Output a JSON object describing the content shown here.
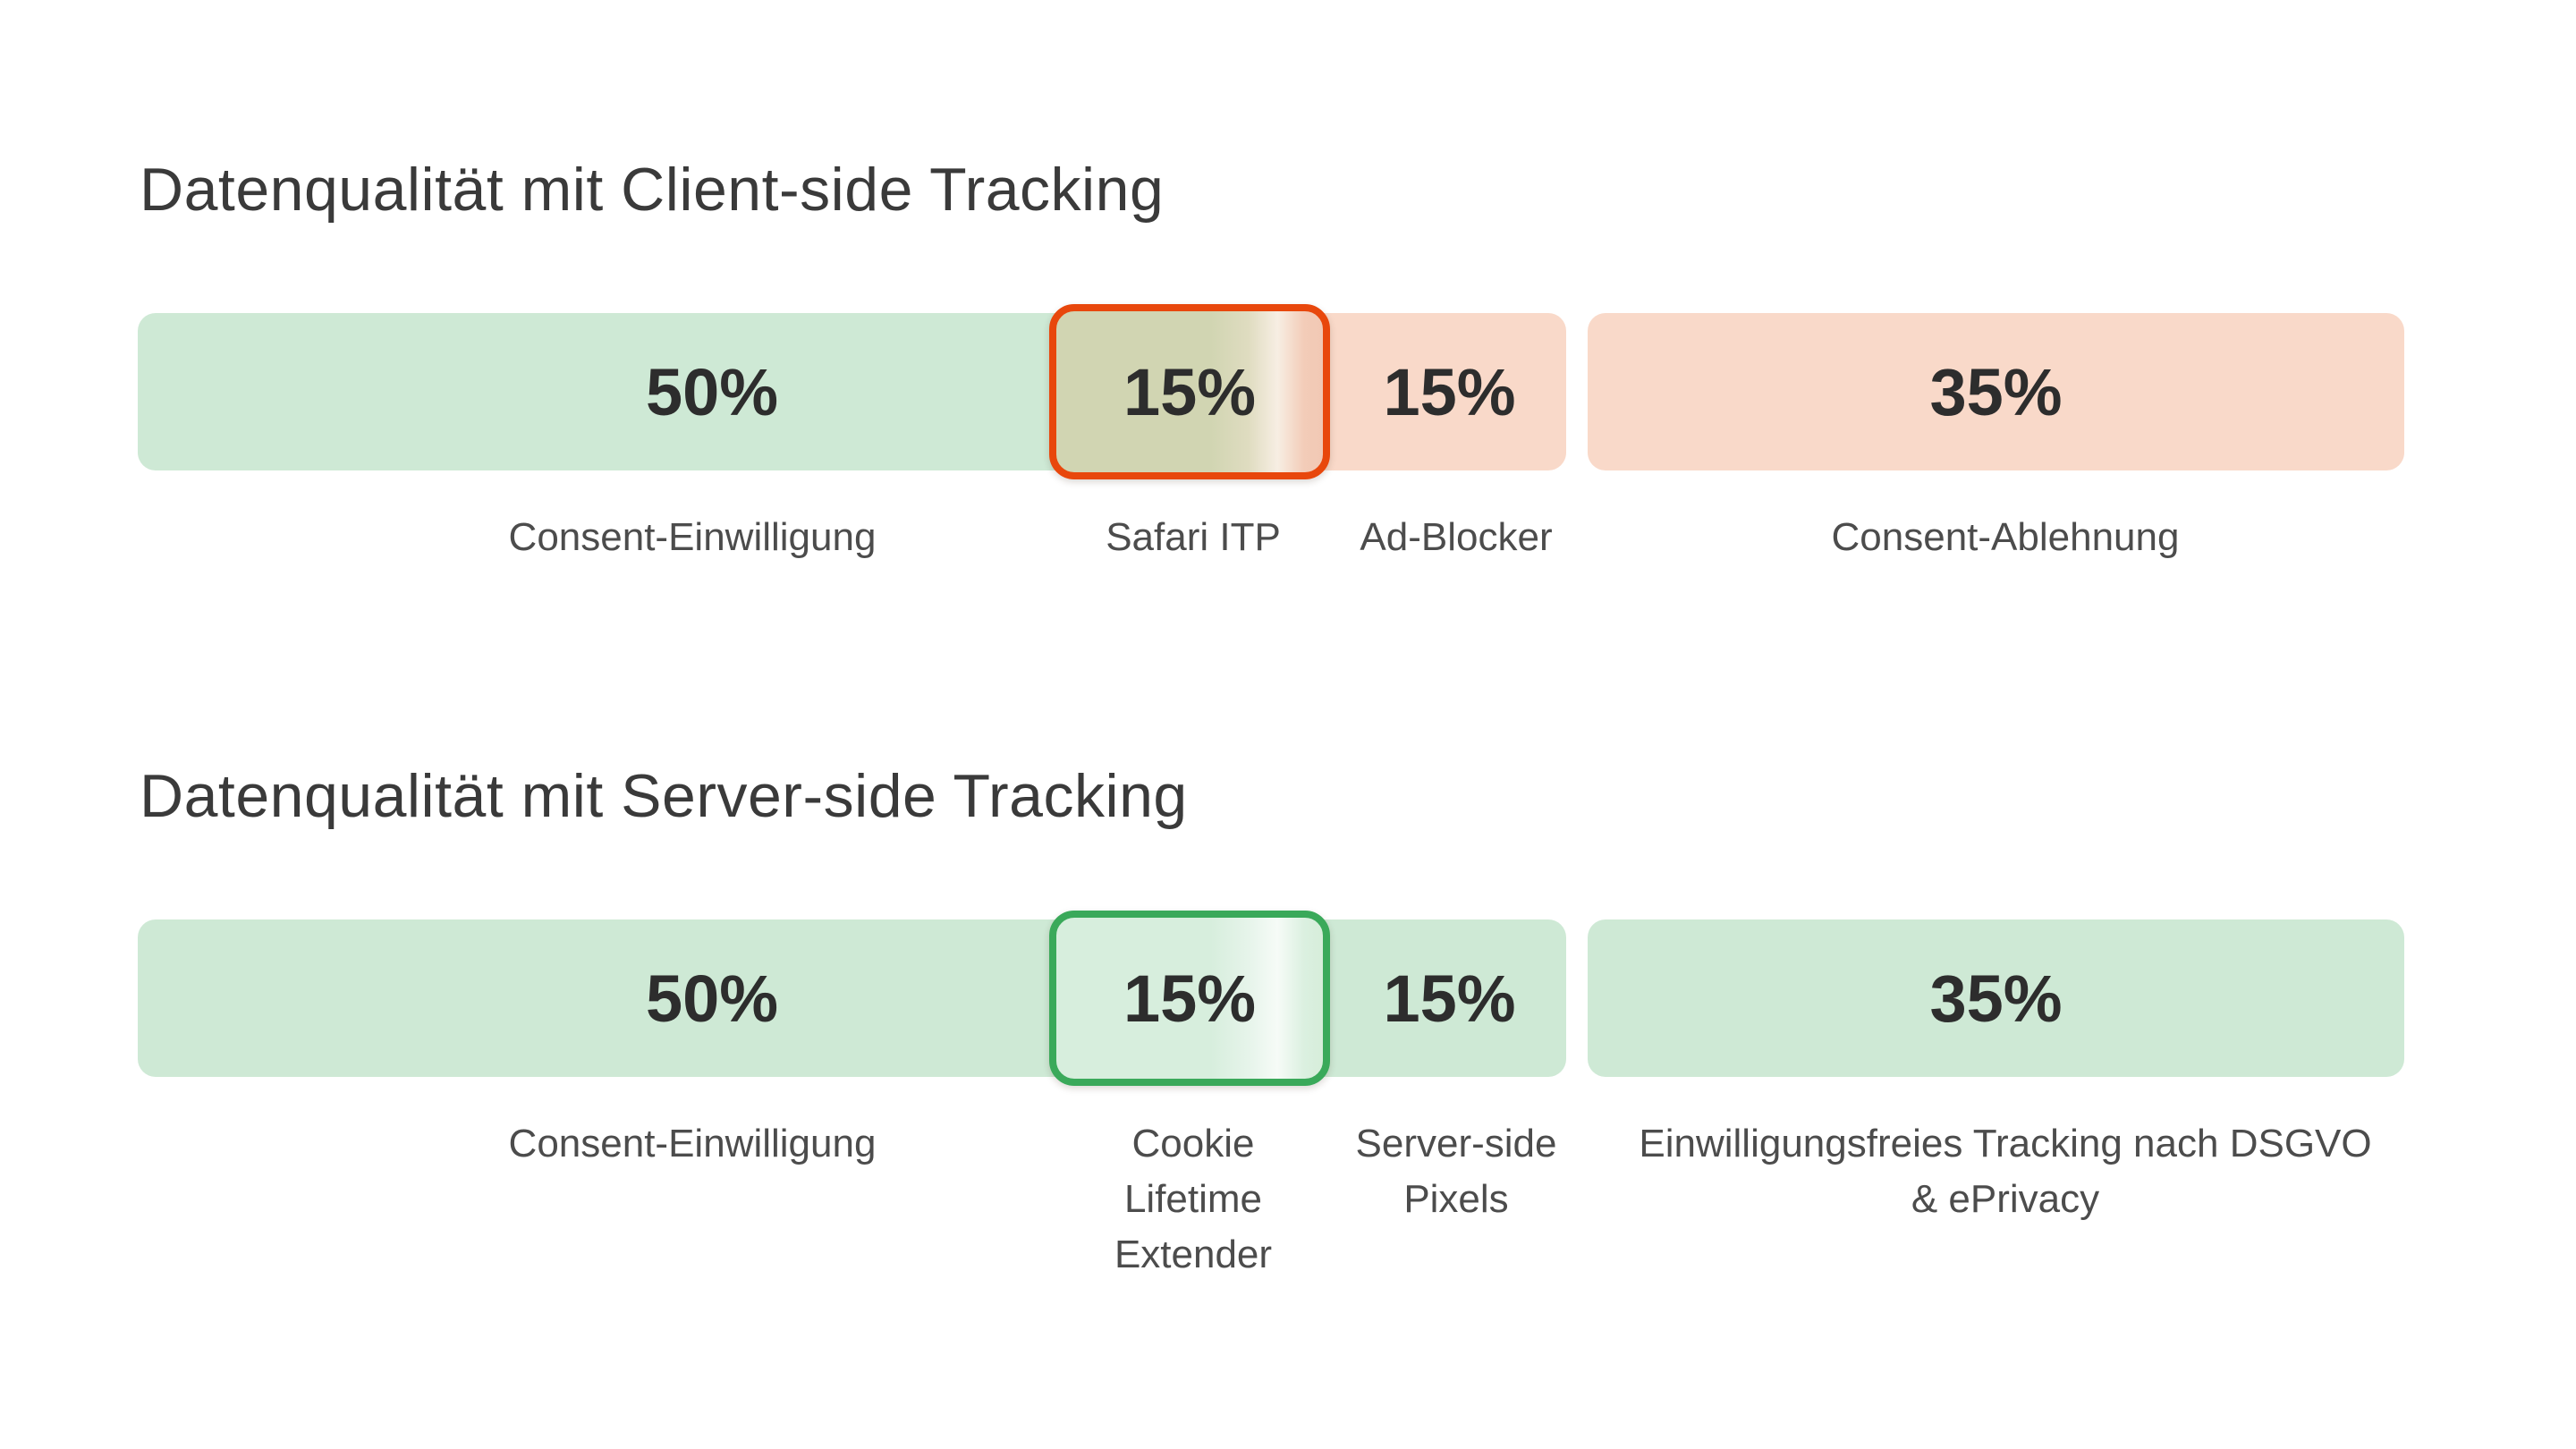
{
  "page": {
    "background": "#ffffff",
    "title_color": "#3a3a3a",
    "value_text_color": "#2d2d2d",
    "label_text_color": "#4c4c4c"
  },
  "chart_data": [
    {
      "type": "bar",
      "orientation": "horizontal",
      "stacked": true,
      "title": "Datenqualität mit Client-side Tracking",
      "unit": "%",
      "categories": [
        "Consent-Einwilligung",
        "Safari ITP",
        "Ad-Blocker",
        "Consent-Ablehnung"
      ],
      "values": [
        50,
        15,
        15,
        35
      ],
      "value_labels": [
        "50%",
        "15%",
        "15%",
        "35%"
      ],
      "segment_sentiment": [
        "positive",
        "transition-loss",
        "negative",
        "negative"
      ],
      "highlighted_segment": "Safari ITP",
      "colors": {
        "positive_fill": "#cee9d5",
        "negative_fill": "#f9d9c9",
        "highlight_border": "#e8470c",
        "highlight_fill_left": "#d1d5b2",
        "highlight_fill_right": "#f1c8b4"
      }
    },
    {
      "type": "bar",
      "orientation": "horizontal",
      "stacked": true,
      "title": "Datenqualität mit Server-side Tracking",
      "unit": "%",
      "categories": [
        "Consent-Einwilligung",
        "Cookie Lifetime Extender",
        "Server-side Pixels",
        "Einwilligungsfreies Tracking nach DSGVO & ePrivacy"
      ],
      "values": [
        50,
        15,
        15,
        35
      ],
      "value_labels": [
        "50%",
        "15%",
        "15%",
        "35%"
      ],
      "segment_sentiment": [
        "positive",
        "recovered",
        "positive",
        "positive"
      ],
      "highlighted_segment": "Cookie Lifetime Extender",
      "colors": {
        "positive_fill": "#cee9d5",
        "highlight_border": "#3aa95a",
        "highlight_fill_left": "#d7eedd",
        "highlight_fill_right": "#d6edda"
      }
    }
  ]
}
